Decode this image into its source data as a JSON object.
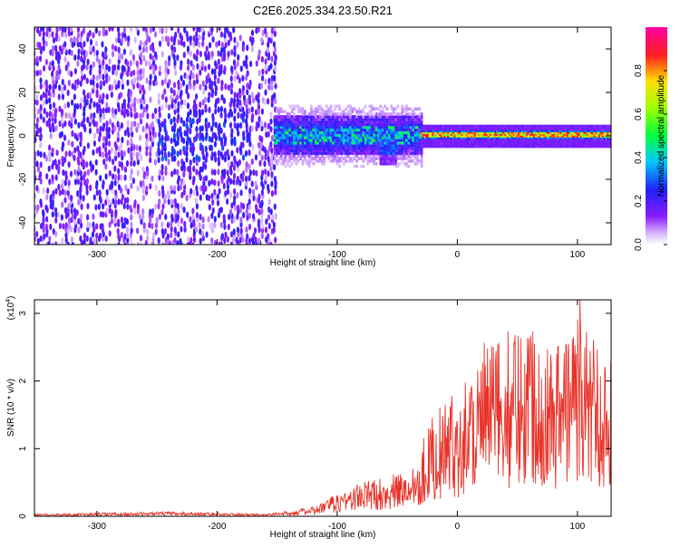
{
  "title": "C2E6.2025.334.23.50.R21",
  "chart_data": [
    {
      "type": "heatmap",
      "name": "spectrogram",
      "xlabel": "Height of straight line (km)",
      "ylabel": "Frequency (Hz)",
      "xlim": [
        -352,
        128
      ],
      "ylim": [
        -50,
        50
      ],
      "xticks": [
        -300,
        -200,
        -100,
        0,
        100
      ],
      "yticks": [
        -40,
        -20,
        0,
        20,
        40
      ],
      "xtick_labels": [
        "-300",
        "-200",
        "-100",
        "0",
        "100"
      ],
      "ytick_labels": [
        "-40",
        "-20",
        "0",
        "20",
        "40"
      ],
      "colorbar": {
        "label": "Normalized spectral amplitude",
        "range": [
          0.0,
          1.0
        ],
        "ticks": [
          0.0,
          0.2,
          0.4,
          0.6,
          0.8
        ],
        "tick_labels": [
          "0.0",
          "0.2",
          "0.4",
          "0.6",
          "0.8"
        ],
        "colormap": "rainbow (white-violet-blue-cyan-green-yellow-red-magenta)"
      },
      "features": [
        {
          "x_range": [
            -352,
            -152
          ],
          "freq_range": [
            -50,
            50
          ],
          "amplitude": 0.15,
          "description": "broadband noise"
        },
        {
          "x_range": [
            -152,
            -30
          ],
          "freq_center": 0,
          "freq_halfwidth": 8,
          "amplitude": 0.3
        },
        {
          "x_range": [
            -30,
            128
          ],
          "freq_center": 0,
          "freq_halfwidth": 3,
          "amplitude": 0.85
        }
      ]
    },
    {
      "type": "line",
      "name": "snr",
      "xlabel": "Height of straight line (km)",
      "ylabel": "SNR (10 * v/v)",
      "yscale_label": "(x10",
      "yscale_exp": "4",
      "xlim": [
        -352,
        128
      ],
      "ylim": [
        0,
        3.2
      ],
      "xticks": [
        -300,
        -200,
        -100,
        0,
        100
      ],
      "yticks": [
        0,
        1,
        2,
        3
      ],
      "xtick_labels": [
        "-300",
        "-200",
        "-100",
        "0",
        "100"
      ],
      "ytick_labels": [
        "0",
        "1",
        "2",
        "3"
      ],
      "color": "#e8332a",
      "series": [
        {
          "name": "SNR",
          "envelope": [
            {
              "x": -352,
              "y": 0.02
            },
            {
              "x": -240,
              "y": 0.04
            },
            {
              "x": -160,
              "y": 0.02
            },
            {
              "x": -120,
              "y": 0.08
            },
            {
              "x": -100,
              "y": 0.2
            },
            {
              "x": -80,
              "y": 0.3
            },
            {
              "x": -40,
              "y": 0.4
            },
            {
              "x": -20,
              "y": 0.9
            },
            {
              "x": 0,
              "y": 1.1
            },
            {
              "x": 20,
              "y": 1.5
            },
            {
              "x": 40,
              "y": 1.6
            },
            {
              "x": 60,
              "y": 1.8
            },
            {
              "x": 80,
              "y": 1.5
            },
            {
              "x": 100,
              "y": 1.8
            },
            {
              "x": 128,
              "y": 1.4
            }
          ],
          "peak": {
            "x": 102,
            "y": 3.2
          }
        }
      ]
    }
  ]
}
